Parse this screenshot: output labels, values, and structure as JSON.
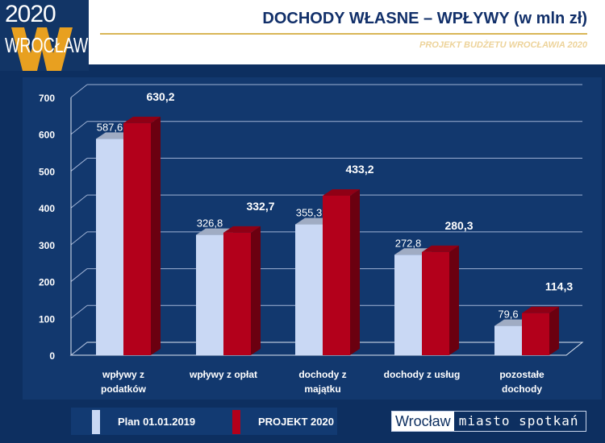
{
  "logo": {
    "year": "2020",
    "city": "WROCŁAW",
    "letter": "W"
  },
  "header": {
    "title": "DOCHODY WŁASNE – WPŁYWY (w mln zł)",
    "subtitle": "PROJEKT BUDŻETU WROCŁAWIA 2020"
  },
  "brand": {
    "name": "Wrocław",
    "tagline": "miasto spotkań"
  },
  "chart_data": {
    "type": "bar",
    "title": "DOCHODY WŁASNE – WPŁYWY (w mln zł)",
    "categories": [
      [
        "wpływy z",
        "podatków"
      ],
      [
        "wpływy z opłat"
      ],
      [
        "dochody z",
        "majątku"
      ],
      [
        "dochody z usług"
      ],
      [
        "pozostałe",
        "dochody"
      ]
    ],
    "series": [
      {
        "name": "Plan 01.01.2019",
        "color": "#c9d8f4",
        "values": [
          587.6,
          326.8,
          355.3,
          272.8,
          79.6
        ],
        "labels": [
          "587,6",
          "326,8",
          "355,3",
          "272,8",
          "79,6"
        ]
      },
      {
        "name": "PROJEKT 2020",
        "color": "#b3001b",
        "values": [
          630.2,
          332.7,
          433.2,
          280.3,
          114.3
        ],
        "labels": [
          "630,2",
          "332,7",
          "433,2",
          "280,3",
          "114,3"
        ]
      }
    ],
    "ylim": [
      0,
      700
    ],
    "yticks": [
      0,
      100,
      200,
      300,
      400,
      500,
      600,
      700
    ],
    "grid": true,
    "legend": "bottom-left"
  }
}
